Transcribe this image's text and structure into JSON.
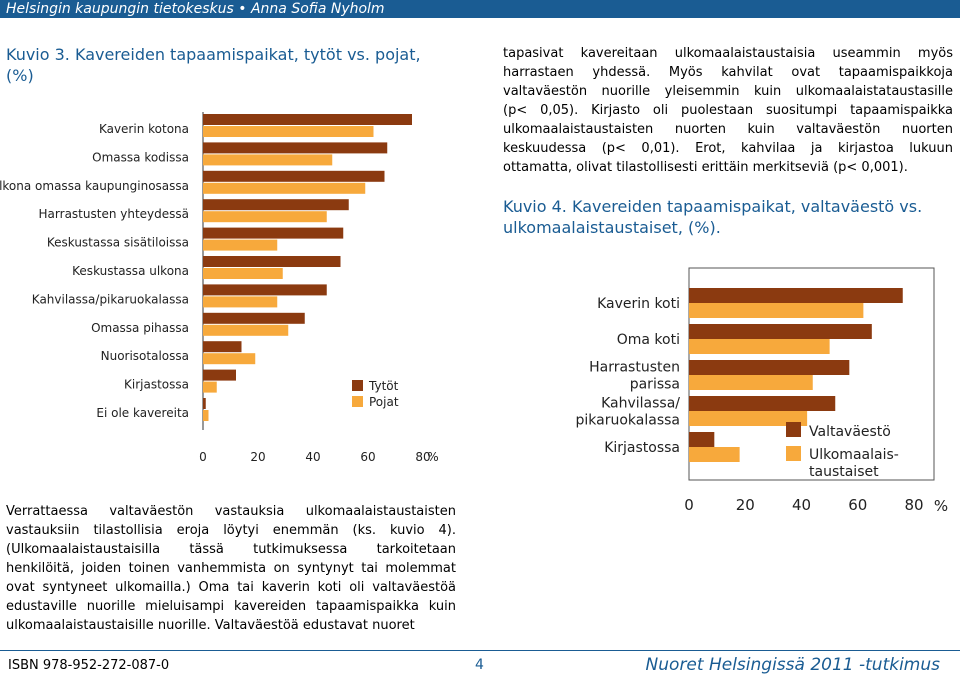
{
  "header": {
    "text": "Helsingin kaupungin tietokeskus • Anna Sofia Nyholm"
  },
  "left_chart_title": [
    "Kuvio 3. Kavereiden tapaamispaikat, tytöt vs. pojat,",
    "(%)"
  ],
  "right_text_top": [
    "tapasivat kavereitaan ulkomaalaistaustaisia useammin myös",
    "harrastaen yhdessä. Myös kahvilat ovat tapaamispaikkoja",
    "valtaväestön nuorille yleisemmin kuin ulkomaalaistataustasille",
    "(p< 0,05). Kirjasto oli puolestaan suositumpi tapaamispaikka",
    "ulkomaalaistaustaisten nuorten kuin valtaväestön nuorten",
    "keskuudessa (p< 0,01). Erot, kahvilaa ja kirjastoa lukuun",
    "ottamatta, olivat tilastollisesti erittäin merkitseviä (p< 0,001)."
  ],
  "right_chart_title": [
    "Kuvio 4. Kavereiden tapaamispaikat, valtaväestö vs.",
    "ulkomaalaistaustaiset, (%)."
  ],
  "left_bottom_text": [
    "Verrattaessa valtaväestön vastauksia ulkomaalaistaustaisten",
    "vastauksiin tilastollisia eroja löytyi enemmän (ks. kuvio 4).",
    "(Ulkomaalaistaustaisilla tässä tutkimuksessa tarkoitetaan",
    "henkilöitä, joiden toinen vanhemmista on syntynyt tai molemmat",
    "ovat syntyneet ulkomailla.) Oma tai kaverin koti oli valtaväestöä",
    "edustaville nuorille mieluisampi kavereiden tapaamispaikka kuin",
    "ulkomaalaistaustaisille nuorille. Valtaväestöä edustavat nuoret"
  ],
  "footer": {
    "isbn": "ISBN 978-952-272-087-0",
    "page": "4",
    "publication": "Nuoret Helsingissä 2011 -tutkimus"
  },
  "colors": {
    "series_a": "#8b3a10",
    "series_b": "#f7a93c",
    "accent": "#1a5c93"
  },
  "chart_data": [
    {
      "type": "bar",
      "orientation": "horizontal",
      "categories": [
        "Kaverin kotona",
        "Omassa kodissa",
        "Ulkona omassa kaupunginosassa",
        "Harrastusten yhteydessä",
        "Keskustassa sisätiloissa",
        "Keskustassa ulkona",
        "Kahvilassa/pikaruokalassa",
        "Omassa pihassa",
        "Nuorisotalossa",
        "Kirjastossa",
        "Ei ole kavereita"
      ],
      "series": [
        {
          "name": "Tytöt",
          "values": [
            76,
            67,
            66,
            53,
            51,
            50,
            45,
            37,
            14,
            12,
            1
          ]
        },
        {
          "name": "Pojat",
          "values": [
            62,
            47,
            59,
            45,
            27,
            29,
            27,
            31,
            19,
            5,
            2
          ]
        }
      ],
      "xticks": [
        "0",
        "20",
        "40",
        "60",
        "80"
      ],
      "xunit": "%",
      "xlim": [
        0,
        80
      ],
      "legend_position": "right"
    },
    {
      "type": "bar",
      "orientation": "horizontal",
      "categories": [
        "Kaverin koti",
        "Oma koti",
        "Harrastusten parissa",
        "Kahvilassa/ pikaruokalassa",
        "Kirjastossa"
      ],
      "category_lines": [
        [
          "Kaverin koti"
        ],
        [
          "Oma koti"
        ],
        [
          "Harrastusten",
          "parissa"
        ],
        [
          "Kahvilassa/",
          "pikaruokalassa"
        ],
        [
          "Kirjastossa"
        ]
      ],
      "series": [
        {
          "name": "Valtaväestö",
          "name_lines": [
            "Valtaväestö"
          ],
          "values": [
            76,
            65,
            57,
            52,
            9
          ]
        },
        {
          "name": "Ulkomaalais- taustaiset",
          "name_lines": [
            "Ulkomaalais-",
            "taustaiset"
          ],
          "values": [
            62,
            50,
            44,
            42,
            18
          ]
        }
      ],
      "xticks": [
        "0",
        "20",
        "40",
        "60",
        "80"
      ],
      "xunit": "%",
      "xlim": [
        0,
        80
      ],
      "legend_position": "right"
    }
  ]
}
